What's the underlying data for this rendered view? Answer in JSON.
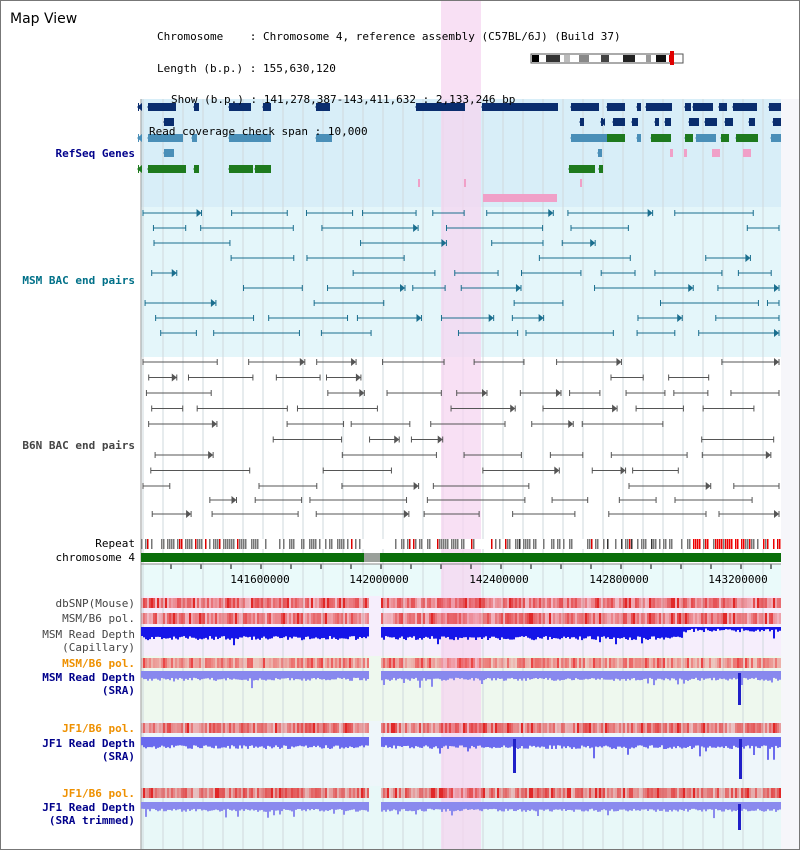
{
  "window": {
    "title": "Map View"
  },
  "info": {
    "chromosome_key": "Chromosome",
    "chromosome_val": "Chromosome 4, reference assembly (C57BL/6J) (Build 37)",
    "length_key": "Length (b.p.)",
    "length_val": "155,630,120",
    "show_key": "Show (b.p.)",
    "show_val": "141,278,387-143,411,632 : 2,133,246 bp",
    "span_key": "Read coverage check span",
    "span_val": "10,000"
  },
  "tracks": {
    "refseq": "RefSeq Genes",
    "msm_bac": "MSM BAC end pairs",
    "b6n_bac": "B6N BAC end pairs",
    "repeat": "Repeat",
    "chromosome": "chromosome 4",
    "dbsnp": "dbSNP(Mouse)",
    "msm_b6_pol": "MSM/B6 pol.",
    "msm_depth_cap_1": "MSM Read Depth",
    "msm_depth_cap_2": "(Capillary)",
    "msm_b6_pol_2": "MSM/B6 pol.",
    "msm_depth_sra_1": "MSM Read Depth",
    "msm_depth_sra_2": "(SRA)",
    "jf1_b6_pol": "JF1/B6 pol.",
    "jf1_depth_sra_1": "JF1 Read Depth",
    "jf1_depth_sra_2": "(SRA)",
    "jf1_b6_pol_2": "JF1/B6 pol.",
    "jf1_depth_trim_1": "JF1 Read Depth",
    "jf1_depth_trim_2": "(SRA trimmed)"
  },
  "axis": {
    "ticks": [
      "141600000",
      "142000000",
      "142400000",
      "142800000",
      "143200000"
    ]
  },
  "colors": {
    "refseq_dark": "#0a2d6e",
    "refseq_mid": "#4a8fb8",
    "refseq_green": "#1e7a1e",
    "highlight": "#f6d5f0",
    "chromosome_bar": "#0a6e0a"
  }
}
